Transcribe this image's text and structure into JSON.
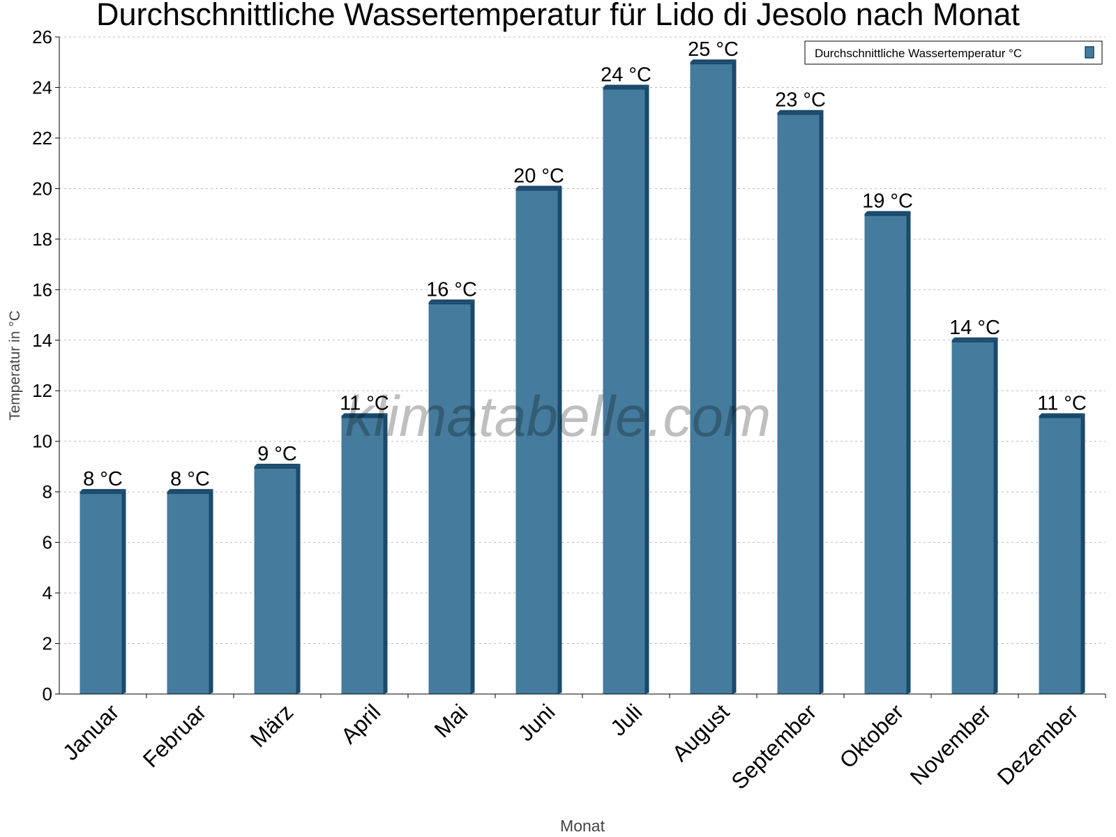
{
  "chart_data": {
    "type": "bar",
    "title": "Durchschnittliche Wassertemperatur für Lido di Jesolo nach Monat",
    "xlabel": "Monat",
    "ylabel": "Temperatur in °C",
    "ylim": [
      0,
      26
    ],
    "yticks": [
      0,
      2,
      4,
      6,
      8,
      10,
      12,
      14,
      16,
      18,
      20,
      22,
      24,
      26
    ],
    "grid": true,
    "legend_position": "top-right",
    "categories": [
      "Januar",
      "Februar",
      "März",
      "April",
      "Mai",
      "Juni",
      "Juli",
      "August",
      "September",
      "Oktober",
      "November",
      "Dezember"
    ],
    "series": [
      {
        "name": "Durchschnittliche Wassertemperatur °C",
        "values": [
          8,
          8,
          9,
          11,
          15.5,
          20,
          24,
          25,
          23,
          19,
          14,
          11
        ],
        "labels": [
          "8 °C",
          "8 °C",
          "9 °C",
          "11 °C",
          "16 °C",
          "20 °C",
          "24 °C",
          "25 °C",
          "23 °C",
          "19 °C",
          "14 °C",
          "11 °C"
        ],
        "color": "#457b9d",
        "edge_color": "#1a4a6b"
      }
    ],
    "watermark": "klimatabelle.com"
  }
}
